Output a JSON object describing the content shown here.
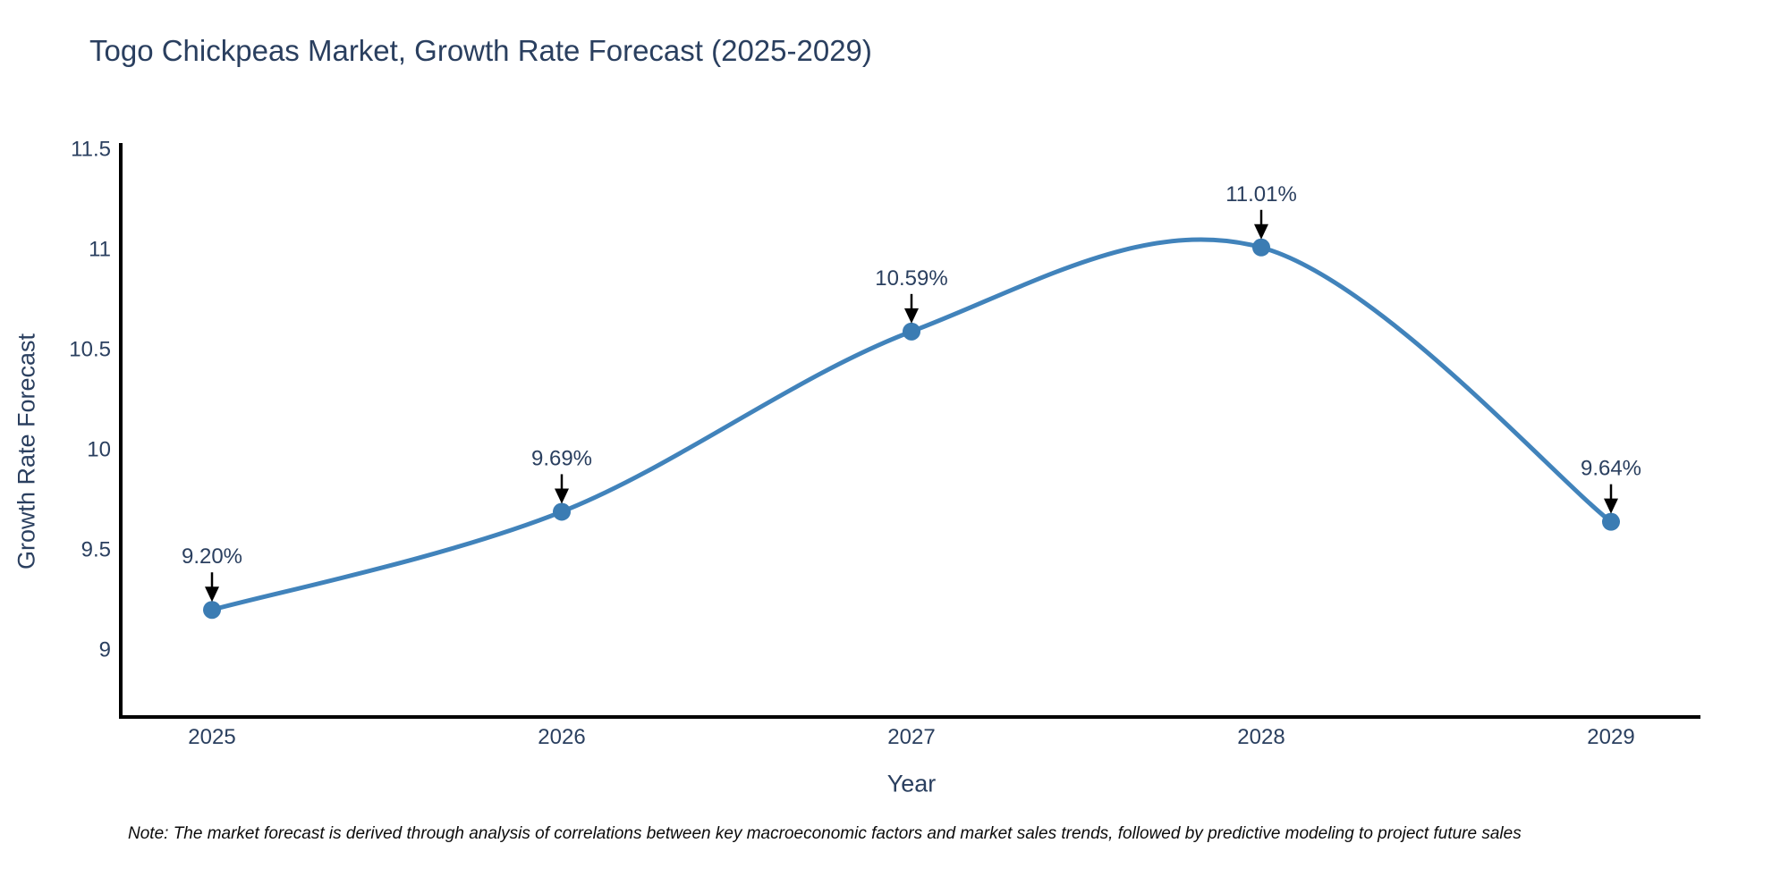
{
  "page": {
    "note": "Note: The market forecast is derived through analysis of correlations between key macroeconomic factors and market sales trends, followed by predictive modeling to project future sales"
  },
  "chart_data": {
    "type": "line",
    "title": "Togo Chickpeas Market, Growth Rate Forecast (2025-2029)",
    "xlabel": "Year",
    "ylabel": "Growth Rate Forecast",
    "categories": [
      "2025",
      "2026",
      "2027",
      "2028",
      "2029"
    ],
    "values": [
      9.2,
      9.69,
      10.59,
      11.01,
      9.64
    ],
    "point_labels": [
      "9.20%",
      "9.69%",
      "10.59%",
      "11.01%",
      "9.64%"
    ],
    "yticks": [
      9,
      9.5,
      10,
      10.5,
      11,
      11.5
    ],
    "ylim": [
      8.66,
      11.53
    ],
    "line_shape": "spline",
    "grid": false,
    "legend": false,
    "annotation_arrows": true,
    "colors": {
      "line": "#4183bb",
      "marker": "#3b7cb3",
      "axis": "#000000",
      "tick_text": "#2a3f5f",
      "annotation_text": "#2a3f5f",
      "arrow": "#000000"
    }
  }
}
